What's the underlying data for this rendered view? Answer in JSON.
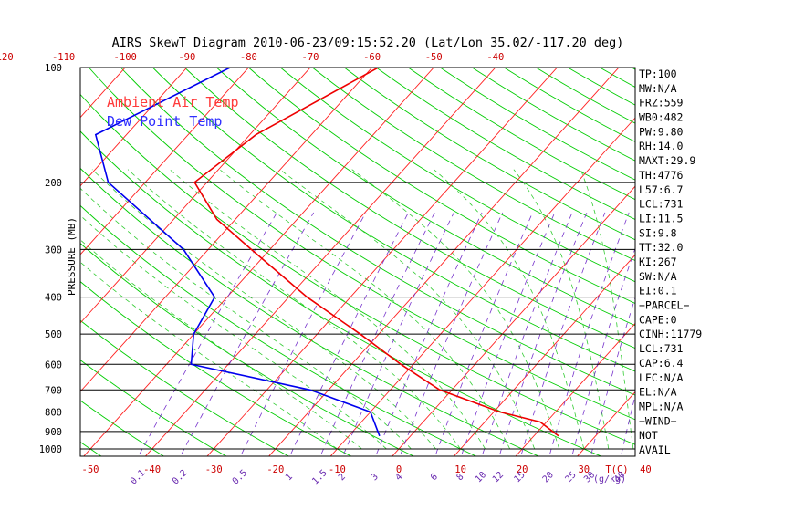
{
  "title": "AIRS SkewT Diagram 2010-06-23/09:15:52.20 (Lat/Lon 35.02/-117.20 deg)",
  "legend": [
    {
      "label": "Ambient Air Temp",
      "color": "#ff3b3b"
    },
    {
      "label": "Dew Point Temp",
      "color": "#2f2fff"
    }
  ],
  "colors": {
    "isotherm": "#ff2020",
    "dry_adiabat": "#00cc00",
    "moist_adiabat": "#33cc33",
    "mixing_ratio": "#7733cc",
    "isobar": "#000000",
    "dewpoint": "#0000ee",
    "temperature": "#ee0000"
  },
  "chart_data": {
    "type": "line",
    "title": "AIRS SkewT Diagram 2010-06-23/09:15:52.20 (Lat/Lon 35.02/-117.20 deg)",
    "ylabel": "PRESSURE (MB)",
    "xlabel": "T(C)",
    "y_scale": "log",
    "ylim": [
      1000,
      100
    ],
    "y_ticks": [
      "100",
      "200",
      "300",
      "400",
      "500",
      "600",
      "700",
      "800",
      "900",
      "1000"
    ],
    "x_ticks_bottom": [
      "-50",
      "-40",
      "-30",
      "-20",
      "-10",
      "0",
      "10",
      "20",
      "30",
      "40"
    ],
    "x_ticks_top": [
      "-120",
      "-110",
      "-100",
      "-90",
      "-80",
      "-70",
      "-60",
      "-50",
      "-40"
    ],
    "mixing_ratio_labels": [
      "0.1",
      "0.2",
      "0.5",
      "1",
      "1.5",
      "2",
      "3",
      "4",
      "6",
      "8",
      "10",
      "12",
      "15",
      "20",
      "25",
      "30",
      "40"
    ],
    "mixing_ratio_unit": "(g/kg)",
    "series": [
      {
        "name": "Ambient Air Temp",
        "points": [
          {
            "p": 100,
            "t": -59
          },
          {
            "p": 150,
            "t": -69
          },
          {
            "p": 200,
            "t": -72
          },
          {
            "p": 250,
            "t": -63
          },
          {
            "p": 300,
            "t": -53
          },
          {
            "p": 400,
            "t": -37
          },
          {
            "p": 500,
            "t": -23
          },
          {
            "p": 600,
            "t": -12
          },
          {
            "p": 700,
            "t": -2
          },
          {
            "p": 800,
            "t": 11
          },
          {
            "p": 850,
            "t": 19
          },
          {
            "p": 925,
            "t": 24
          }
        ]
      },
      {
        "name": "Dew Point Temp",
        "points": [
          {
            "p": 100,
            "t": -83
          },
          {
            "p": 150,
            "t": -95
          },
          {
            "p": 200,
            "t": -86
          },
          {
            "p": 300,
            "t": -64
          },
          {
            "p": 400,
            "t": -52
          },
          {
            "p": 500,
            "t": -50
          },
          {
            "p": 600,
            "t": -46
          },
          {
            "p": 700,
            "t": -23
          },
          {
            "p": 800,
            "t": -10
          },
          {
            "p": 925,
            "t": -5
          }
        ]
      }
    ],
    "indices": [
      "TP:100",
      "MW:N/A",
      "FRZ:559",
      "WB0:482",
      "PW:9.80",
      "RH:14.0",
      "MAXT:29.9",
      "TH:4776",
      "L57:6.7",
      "LCL:731",
      "LI:11.5",
      "SI:9.8",
      "TT:32.0",
      "KI:267",
      "SW:N/A",
      "EI:0.1",
      "−PARCEL−",
      "CAPE:0",
      "CINH:11779",
      "LCL:731",
      "CAP:6.4",
      "LFC:N/A",
      "EL:N/A",
      "MPL:N/A",
      "−WIND−",
      "NOT",
      "AVAIL"
    ]
  }
}
